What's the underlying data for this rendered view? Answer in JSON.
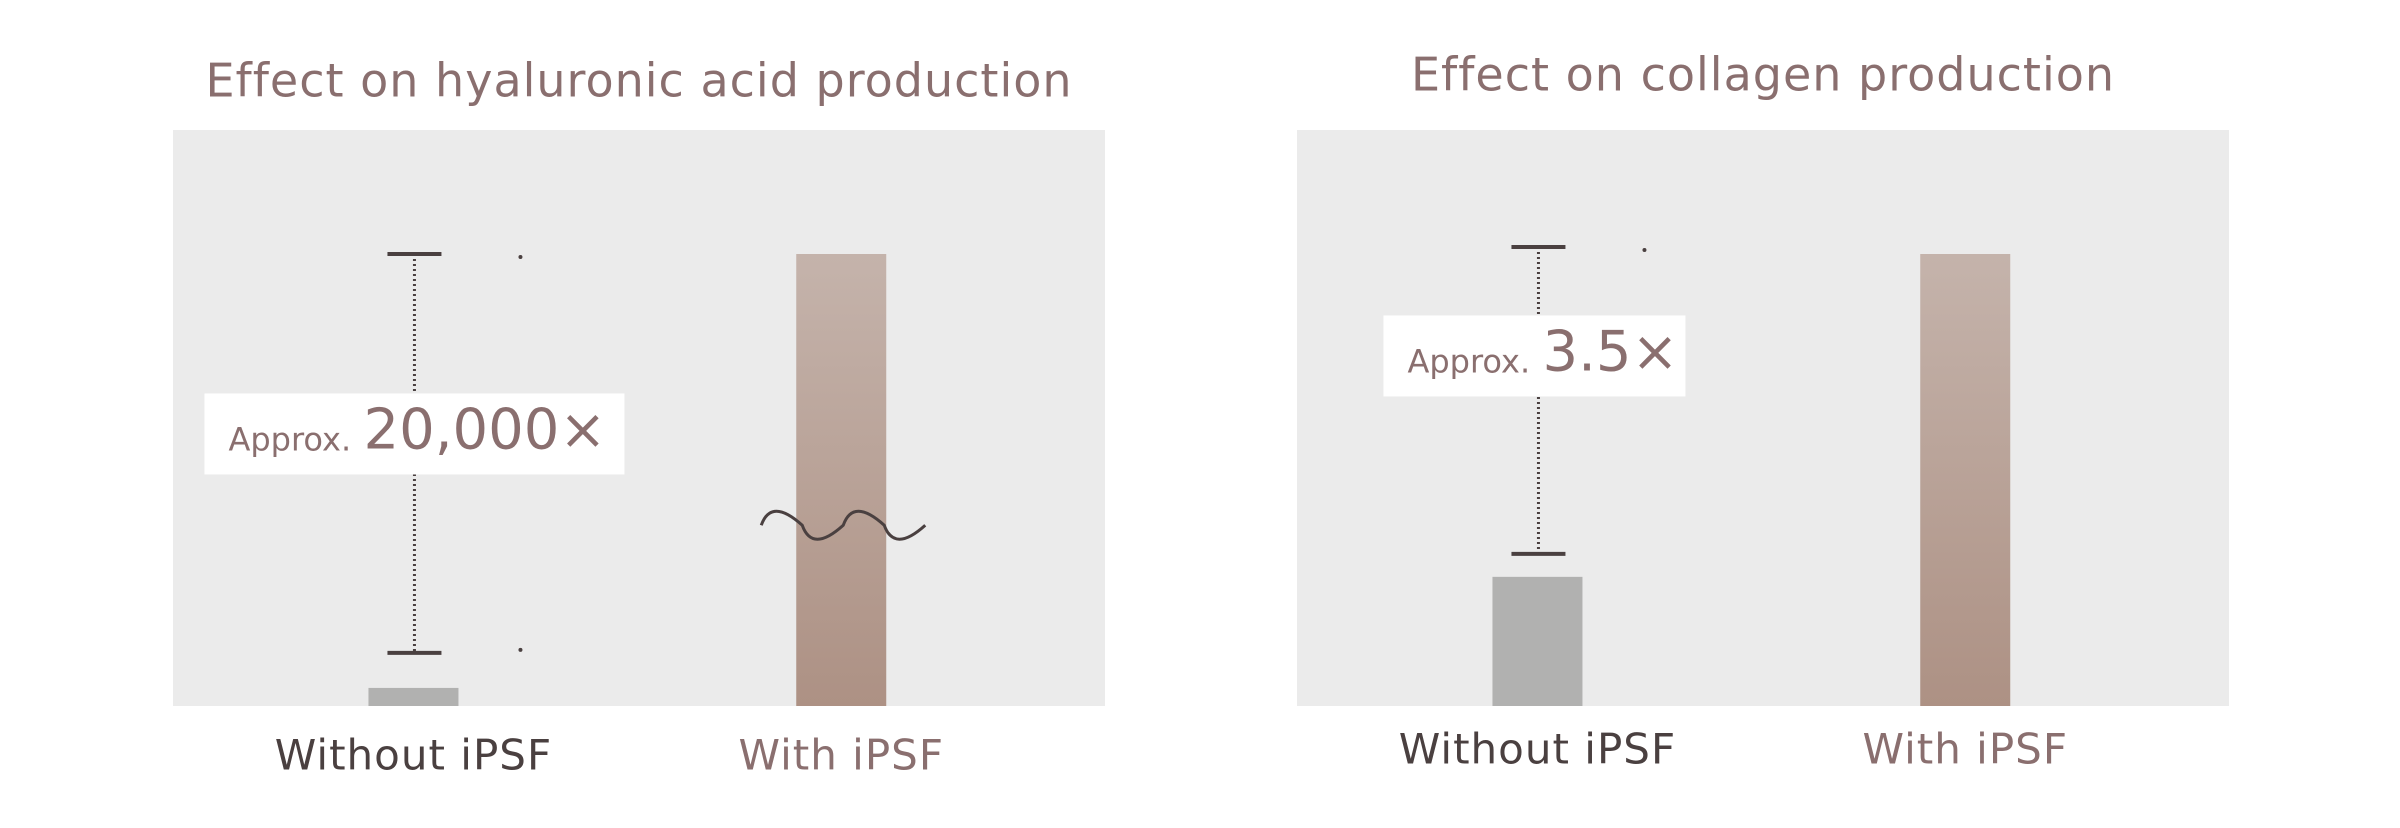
{
  "chart_data": [
    {
      "type": "bar",
      "title": "Effect on hyaluronic acid production",
      "categories": [
        "Without iPSF",
        "With iPSF"
      ],
      "values": [
        1,
        20000
      ],
      "colors": [
        "#b1b1b0",
        "#ad9184"
      ],
      "ylim": [
        0,
        25
      ],
      "axis_break": true,
      "annotation": {
        "prefix": "Approx.",
        "text": "20,000×"
      }
    },
    {
      "type": "bar",
      "title": "Effect on collagen production",
      "categories": [
        "Without iPSF",
        "With iPSF"
      ],
      "values": [
        1,
        3.5
      ],
      "colors": [
        "#b1b1b0",
        "#ad9184"
      ],
      "ylim": [
        0,
        3.5
      ],
      "axis_break": false,
      "annotation": {
        "prefix": "Approx.",
        "text": "3.5×"
      }
    }
  ]
}
